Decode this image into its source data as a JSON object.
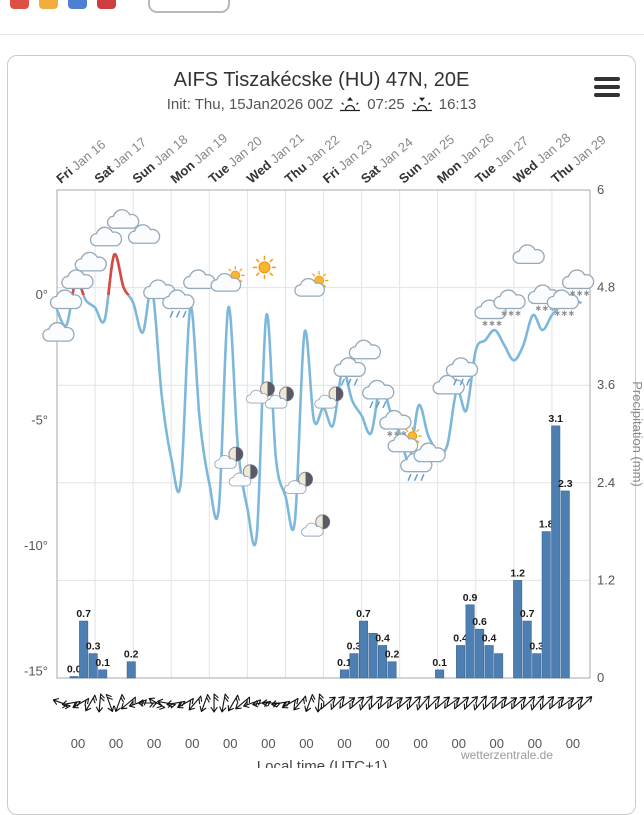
{
  "browser_toolbar": {
    "icons": [
      {
        "name": "toolbar-icon-red",
        "color": "#dc5143"
      },
      {
        "name": "toolbar-icon-yellow",
        "color": "#f0ad3e"
      },
      {
        "name": "toolbar-icon-blue",
        "color": "#4f7fd2"
      },
      {
        "name": "toolbar-icon-crimson",
        "color": "#cf3e3e"
      }
    ]
  },
  "chart_data": {
    "type": "line",
    "title": "AIFS Tiszakécske (HU) 47N, 20E",
    "init_label": "Init: Thu, 15Jan2026 00Z",
    "sunrise_time": "07:25",
    "sunset_time": "16:13",
    "days": [
      {
        "day": "Fri",
        "date": "Jan 16"
      },
      {
        "day": "Sat",
        "date": "Jan 17"
      },
      {
        "day": "Sun",
        "date": "Jan 18"
      },
      {
        "day": "Mon",
        "date": "Jan 19"
      },
      {
        "day": "Tue",
        "date": "Jan 20"
      },
      {
        "day": "Wed",
        "date": "Jan 21"
      },
      {
        "day": "Thu",
        "date": "Jan 22"
      },
      {
        "day": "Fri",
        "date": "Jan 23"
      },
      {
        "day": "Sat",
        "date": "Jan 24"
      },
      {
        "day": "Sun",
        "date": "Jan 25"
      },
      {
        "day": "Mon",
        "date": "Jan 26"
      },
      {
        "day": "Tue",
        "date": "Jan 27"
      },
      {
        "day": "Wed",
        "date": "Jan 28"
      },
      {
        "day": "Thu",
        "date": "Jan 29"
      }
    ],
    "temp_axis_ticks": [
      "0°",
      "-5°",
      "-10°",
      "-15°"
    ],
    "temp_axis_values": [
      0,
      -5,
      -10,
      -15
    ],
    "precip_axis_label": "Precipitation (mm)",
    "precip_axis_ticks": [
      "6",
      "4.8",
      "3.6",
      "2.4",
      "1.2",
      "0"
    ],
    "precip_axis_values": [
      6,
      4.8,
      3.6,
      2.4,
      1.2,
      0
    ],
    "temperature_step_hours": 6,
    "temperature_c_6hourly": [
      -0.6,
      -1.2,
      0.6,
      -0.2,
      -0.5,
      -1.0,
      1.6,
      0.3,
      -0.3,
      -1.5,
      0.2,
      -4.0,
      -6.5,
      -7.5,
      -0.5,
      -5.0,
      -7.5,
      -8.5,
      -0.5,
      -6.0,
      -8.5,
      -9.5,
      -0.8,
      -6.5,
      -8.0,
      -9.0,
      -1.5,
      -5.0,
      -4.5,
      -5.2,
      -3.0,
      -4.2,
      -4.8,
      -5.5,
      -3.6,
      -4.6,
      -5.5,
      -6.6,
      -4.4,
      -5.6,
      -6.2,
      -6.0,
      -3.8,
      -4.6,
      -2.2,
      -1.8,
      -1.4,
      -2.0,
      -2.6,
      -2.0,
      -0.8,
      -1.4,
      -0.8,
      -0.4,
      -0.2,
      -0.3
    ],
    "precip_bars": [
      {
        "t": 0.45,
        "v": 0.0,
        "label": "0.0"
      },
      {
        "t": 0.7,
        "v": 0.7,
        "label": "0.7"
      },
      {
        "t": 0.95,
        "v": 0.3,
        "label": "0.3"
      },
      {
        "t": 1.2,
        "v": 0.1,
        "label": "0.1"
      },
      {
        "t": 1.95,
        "v": 0.2,
        "label": "0.2"
      },
      {
        "t": 7.55,
        "v": 0.1,
        "label": "0.1"
      },
      {
        "t": 7.8,
        "v": 0.3,
        "label": "0.3"
      },
      {
        "t": 8.05,
        "v": 0.7,
        "label": "0.7"
      },
      {
        "t": 8.3,
        "v": 0.55,
        "label": ""
      },
      {
        "t": 8.55,
        "v": 0.4,
        "label": "0.4"
      },
      {
        "t": 8.8,
        "v": 0.2,
        "label": "0.2"
      },
      {
        "t": 10.05,
        "v": 0.1,
        "label": "0.1"
      },
      {
        "t": 10.6,
        "v": 0.4,
        "label": "0.4"
      },
      {
        "t": 10.85,
        "v": 0.9,
        "label": "0.9"
      },
      {
        "t": 11.1,
        "v": 0.6,
        "label": "0.6"
      },
      {
        "t": 11.35,
        "v": 0.4,
        "label": "0.4"
      },
      {
        "t": 11.6,
        "v": 0.3,
        "label": ""
      },
      {
        "t": 12.1,
        "v": 1.2,
        "label": "1.2"
      },
      {
        "t": 12.35,
        "v": 0.7,
        "label": "0.7"
      },
      {
        "t": 12.6,
        "v": 0.3,
        "label": "0.3"
      },
      {
        "t": 12.85,
        "v": 1.8,
        "label": "1.8"
      },
      {
        "t": 13.1,
        "v": 3.1,
        "label": "3.1"
      },
      {
        "t": 13.35,
        "v": 2.3,
        "label": "2.3"
      }
    ],
    "weather_icons": [
      {
        "t": 0.05,
        "temp": -1.6,
        "type": "cloud"
      },
      {
        "t": 0.25,
        "temp": -0.3,
        "type": "cloud"
      },
      {
        "t": 0.55,
        "temp": 0.5,
        "type": "cloud"
      },
      {
        "t": 0.9,
        "temp": 1.2,
        "type": "cloud"
      },
      {
        "t": 1.3,
        "temp": 2.2,
        "type": "cloud"
      },
      {
        "t": 1.75,
        "temp": 2.9,
        "type": "cloud"
      },
      {
        "t": 2.3,
        "temp": 2.3,
        "type": "cloud"
      },
      {
        "t": 2.7,
        "temp": 0.1,
        "type": "cloud"
      },
      {
        "t": 3.2,
        "temp": -0.3,
        "type": "rain"
      },
      {
        "t": 3.75,
        "temp": 0.5,
        "type": "cloud"
      },
      {
        "t": 4.5,
        "temp": 0.5,
        "type": "suncloud"
      },
      {
        "t": 4.62,
        "temp": -6.5,
        "type": "mooncloud"
      },
      {
        "t": 5.0,
        "temp": -7.2,
        "type": "mooncloud"
      },
      {
        "t": 5.45,
        "temp": 1.1,
        "type": "sun"
      },
      {
        "t": 5.45,
        "temp": -3.9,
        "type": "mooncloud"
      },
      {
        "t": 5.95,
        "temp": -4.1,
        "type": "mooncloud"
      },
      {
        "t": 6.45,
        "temp": -7.5,
        "type": "mooncloud"
      },
      {
        "t": 6.7,
        "temp": 0.3,
        "type": "suncloud"
      },
      {
        "t": 6.9,
        "temp": -9.2,
        "type": "mooncloud"
      },
      {
        "t": 7.25,
        "temp": -4.1,
        "type": "mooncloud"
      },
      {
        "t": 7.7,
        "temp": -3.0,
        "type": "rain"
      },
      {
        "t": 8.1,
        "temp": -2.3,
        "type": "cloud"
      },
      {
        "t": 8.45,
        "temp": -3.9,
        "type": "rain"
      },
      {
        "t": 8.9,
        "temp": -5.1,
        "type": "snow"
      },
      {
        "t": 9.15,
        "temp": -5.9,
        "type": "suncloud"
      },
      {
        "t": 9.45,
        "temp": -6.8,
        "type": "rain"
      },
      {
        "t": 9.8,
        "temp": -6.4,
        "type": "cloud"
      },
      {
        "t": 10.3,
        "temp": -3.7,
        "type": "cloud"
      },
      {
        "t": 10.65,
        "temp": -3.0,
        "type": "rain"
      },
      {
        "t": 11.4,
        "temp": -0.7,
        "type": "snow"
      },
      {
        "t": 11.9,
        "temp": -0.3,
        "type": "snow"
      },
      {
        "t": 12.4,
        "temp": 1.5,
        "type": "cloud"
      },
      {
        "t": 12.8,
        "temp": -0.1,
        "type": "snow"
      },
      {
        "t": 13.3,
        "temp": -0.3,
        "type": "snow"
      },
      {
        "t": 13.7,
        "temp": 0.5,
        "type": "snow"
      }
    ],
    "wind_dir_deg": [
      200,
      170,
      150,
      120,
      95,
      70,
      110,
      140,
      160,
      180,
      210,
      190,
      170,
      150,
      130,
      110,
      90,
      100,
      120,
      140,
      160,
      170,
      180,
      170,
      150,
      130,
      110,
      95,
      320,
      315,
      325,
      320,
      310,
      315,
      320,
      325,
      320,
      315,
      310,
      315,
      320,
      325,
      320,
      315,
      310,
      315,
      320,
      325,
      320,
      315,
      310,
      315,
      320,
      325,
      320,
      315
    ],
    "time_tick_label": "00",
    "x_axis_label": "Local time (UTC+1)",
    "watermark": "wetterzentrale.de",
    "colors": {
      "temp_line": "#7db8dc",
      "temp_above_zero": "#d9493f",
      "precip_bar": "#4d7fb3",
      "precip_bar_border": "#3a6794",
      "grid": "#e3e3e3",
      "frame": "#a8a8a8",
      "text": "#555555",
      "title": "#333333"
    }
  }
}
